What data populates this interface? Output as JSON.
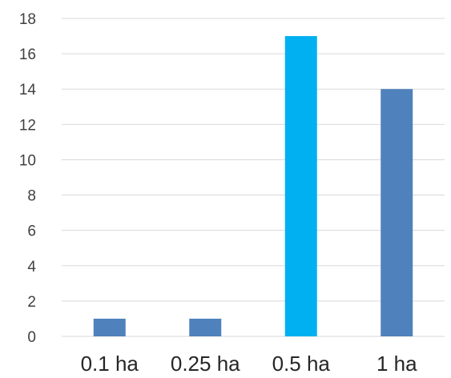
{
  "chart_data": {
    "type": "bar",
    "title": "",
    "xlabel": "",
    "ylabel": "",
    "categories": [
      "0.1 ha",
      "0.25 ha",
      "0.5 ha",
      "1 ha"
    ],
    "values": [
      1,
      1,
      17,
      14
    ],
    "bar_colors": [
      "#4f81bd",
      "#4f81bd",
      "#00b0f0",
      "#4f81bd"
    ],
    "ylim": [
      0,
      18
    ],
    "yticks": [
      "0",
      "2",
      "4",
      "6",
      "8",
      "10",
      "12",
      "14",
      "16",
      "18"
    ],
    "grid": true,
    "legend": "none"
  }
}
